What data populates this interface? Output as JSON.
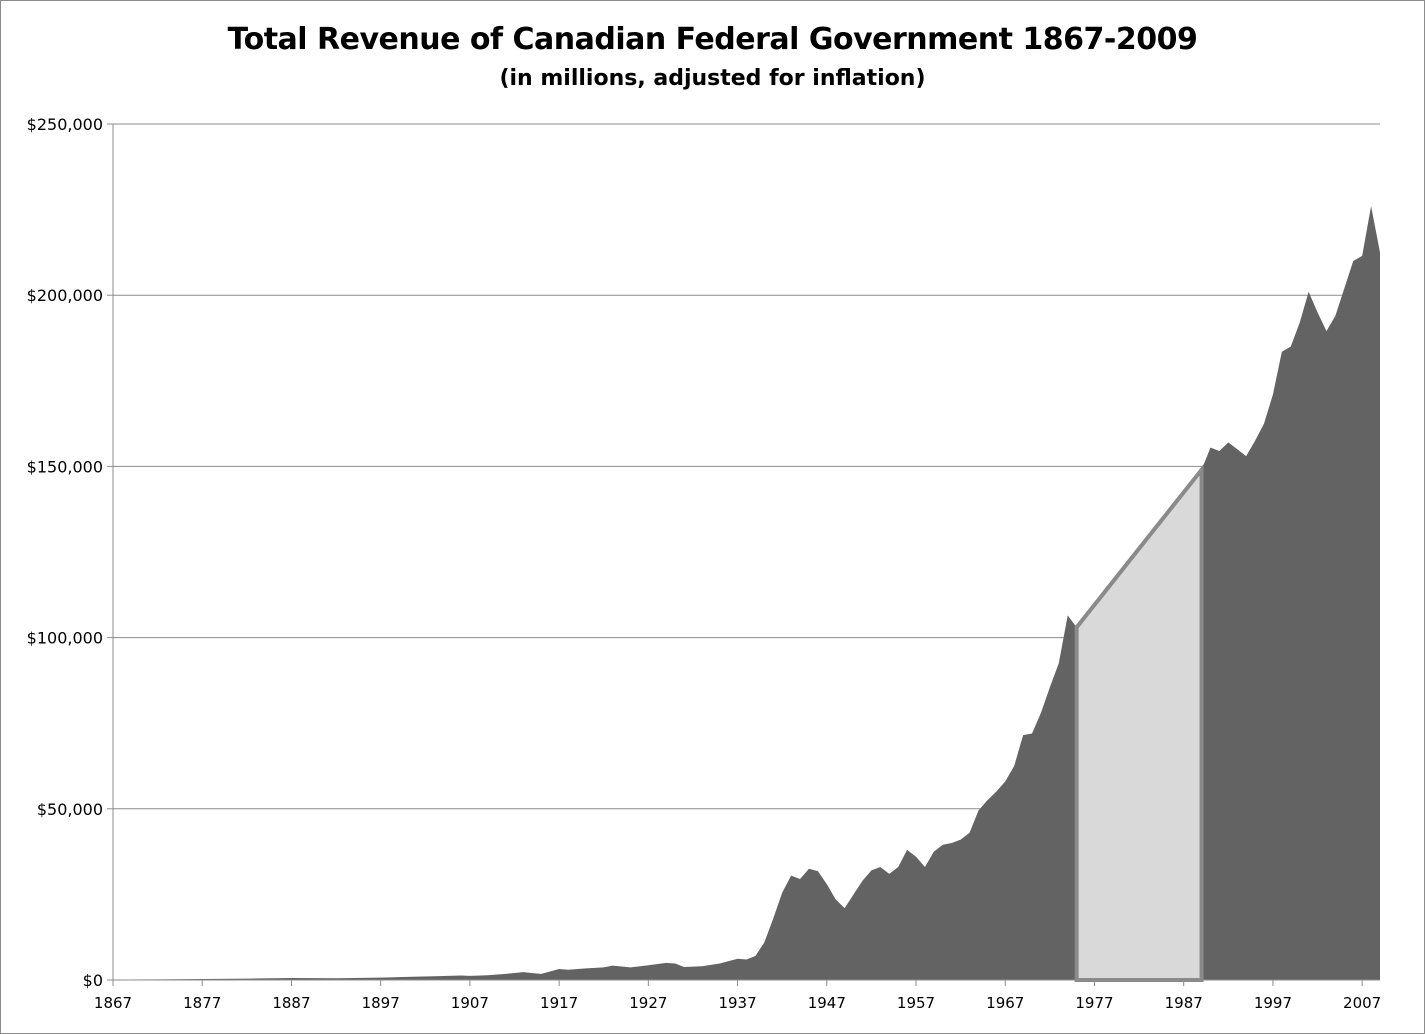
{
  "chart_data": {
    "type": "area",
    "title": "Total Revenue of Canadian Federal Government 1867-2009",
    "subtitle": "(in millions, adjusted for inflation)",
    "xlabel": "",
    "ylabel": "",
    "xlim": [
      1867,
      2009
    ],
    "ylim": [
      0,
      250000
    ],
    "y_ticks": [
      0,
      50000,
      100000,
      150000,
      200000,
      250000
    ],
    "y_tick_labels": [
      "$0",
      "$50,000",
      "$100,000",
      "$150,000",
      "$200,000",
      "$250,000"
    ],
    "x_ticks": [
      1867,
      1877,
      1887,
      1897,
      1907,
      1917,
      1927,
      1937,
      1947,
      1957,
      1967,
      1977,
      1987,
      1997,
      2007
    ],
    "x_tick_labels": [
      "1867",
      "1877",
      "1887",
      "1897",
      "1907",
      "1917",
      "1927",
      "1937",
      "1947",
      "1957",
      "1967",
      "1977",
      "1987",
      "1997",
      "2007"
    ],
    "grid": "horizontal",
    "legend": "none",
    "colors": {
      "area": "#636363",
      "gap_fill": "#d9d9d9",
      "gap_stroke": "#8a8a8a",
      "grid": "#8c8c8c"
    },
    "series": [
      {
        "values": [
          [
            1867,
            100
          ],
          [
            1872,
            200
          ],
          [
            1877,
            300
          ],
          [
            1882,
            400
          ],
          [
            1887,
            600
          ],
          [
            1892,
            500
          ],
          [
            1897,
            700
          ],
          [
            1900,
            900
          ],
          [
            1903,
            1100
          ],
          [
            1906,
            1300
          ],
          [
            1907,
            1200
          ],
          [
            1909,
            1400
          ],
          [
            1911,
            1800
          ],
          [
            1913,
            2300
          ],
          [
            1914,
            2000
          ],
          [
            1915,
            1800
          ],
          [
            1917,
            3200
          ],
          [
            1918,
            3000
          ],
          [
            1920,
            3400
          ],
          [
            1922,
            3700
          ],
          [
            1923,
            4200
          ],
          [
            1925,
            3700
          ],
          [
            1927,
            4300
          ],
          [
            1929,
            5000
          ],
          [
            1930,
            4800
          ],
          [
            1931,
            3800
          ],
          [
            1933,
            4000
          ],
          [
            1935,
            4800
          ],
          [
            1937,
            6200
          ],
          [
            1938,
            6000
          ],
          [
            1939,
            7000
          ],
          [
            1940,
            11000
          ],
          [
            1941,
            18000
          ],
          [
            1942,
            25500
          ],
          [
            1943,
            30500
          ],
          [
            1944,
            29500
          ],
          [
            1945,
            32500
          ],
          [
            1946,
            31800
          ],
          [
            1947,
            28000
          ],
          [
            1948,
            23500
          ],
          [
            1949,
            21000
          ],
          [
            1950,
            25000
          ],
          [
            1951,
            29000
          ],
          [
            1952,
            32000
          ],
          [
            1953,
            33000
          ],
          [
            1954,
            31000
          ],
          [
            1955,
            33000
          ],
          [
            1956,
            38000
          ],
          [
            1957,
            36000
          ],
          [
            1958,
            33000
          ],
          [
            1959,
            37500
          ],
          [
            1960,
            39500
          ],
          [
            1961,
            40000
          ],
          [
            1962,
            41000
          ],
          [
            1963,
            43000
          ],
          [
            1964,
            49500
          ],
          [
            1965,
            52500
          ],
          [
            1966,
            55000
          ],
          [
            1967,
            58000
          ],
          [
            1968,
            62500
          ],
          [
            1969,
            71500
          ],
          [
            1970,
            72000
          ],
          [
            1971,
            78000
          ],
          [
            1972,
            85500
          ],
          [
            1973,
            92500
          ],
          [
            1974,
            106500
          ],
          [
            1975,
            103000
          ],
          [
            1976,
            null
          ],
          [
            1977,
            null
          ],
          [
            1978,
            null
          ],
          [
            1979,
            null
          ],
          [
            1980,
            null
          ],
          [
            1981,
            null
          ],
          [
            1982,
            null
          ],
          [
            1983,
            null
          ],
          [
            1984,
            null
          ],
          [
            1985,
            null
          ],
          [
            1986,
            null
          ],
          [
            1987,
            null
          ],
          [
            1988,
            null
          ],
          [
            1989,
            149000
          ],
          [
            1990,
            155500
          ],
          [
            1991,
            154500
          ],
          [
            1992,
            157000
          ],
          [
            1993,
            155000
          ],
          [
            1994,
            153000
          ],
          [
            1995,
            157500
          ],
          [
            1996,
            162500
          ],
          [
            1997,
            171000
          ],
          [
            1998,
            183500
          ],
          [
            1999,
            185000
          ],
          [
            2000,
            192000
          ],
          [
            2001,
            201000
          ],
          [
            2002,
            195000
          ],
          [
            2003,
            189500
          ],
          [
            2004,
            194000
          ],
          [
            2005,
            202000
          ],
          [
            2006,
            210000
          ],
          [
            2007,
            211500
          ],
          [
            2008,
            226000
          ],
          [
            2009,
            212500
          ]
        ]
      }
    ],
    "missing_range": [
      1975,
      1989
    ]
  }
}
